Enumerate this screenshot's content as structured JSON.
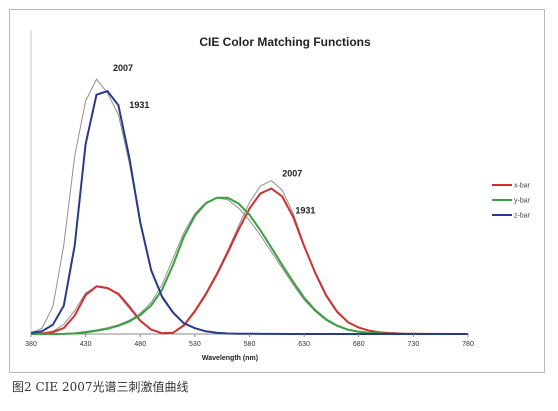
{
  "chart_data": {
    "type": "line",
    "title": "CIE Color Matching Functions",
    "xlabel": "Wavelength (nm)",
    "ylabel": "",
    "xlim": [
      380,
      780
    ],
    "ylim": [
      0,
      2.0
    ],
    "x_ticks": [
      380,
      430,
      480,
      530,
      580,
      630,
      680,
      730,
      780
    ],
    "grid": false,
    "legend_position": "right",
    "legend": [
      {
        "label": "x-bar",
        "color": "#d03030"
      },
      {
        "label": "y-bar",
        "color": "#3aa040"
      },
      {
        "label": "z-bar",
        "color": "#283a8c"
      }
    ],
    "annotations": [
      {
        "text": "2007",
        "x": 455,
        "y": 1.92
      },
      {
        "text": "1931",
        "x": 470,
        "y": 1.65
      },
      {
        "text": "2007",
        "x": 610,
        "y": 1.15
      },
      {
        "text": "1931",
        "x": 622,
        "y": 0.88
      }
    ],
    "series": [
      {
        "name": "x-bar",
        "set": "1931",
        "color": "#d03030",
        "x": [
          380,
          390,
          400,
          410,
          420,
          430,
          440,
          450,
          460,
          470,
          480,
          490,
          500,
          510,
          520,
          530,
          540,
          550,
          560,
          570,
          580,
          590,
          600,
          610,
          620,
          630,
          640,
          650,
          660,
          670,
          680,
          690,
          700,
          720,
          740,
          780
        ],
        "y": [
          0.001,
          0.004,
          0.014,
          0.044,
          0.134,
          0.284,
          0.348,
          0.336,
          0.291,
          0.195,
          0.096,
          0.032,
          0.005,
          0.009,
          0.063,
          0.166,
          0.29,
          0.433,
          0.595,
          0.762,
          0.916,
          1.026,
          1.062,
          1.003,
          0.854,
          0.642,
          0.448,
          0.284,
          0.165,
          0.087,
          0.047,
          0.023,
          0.011,
          0.003,
          0.001,
          0
        ]
      },
      {
        "name": "y-bar",
        "set": "1931",
        "color": "#3aa040",
        "x": [
          380,
          390,
          400,
          410,
          420,
          430,
          440,
          450,
          460,
          470,
          480,
          490,
          500,
          510,
          520,
          530,
          540,
          550,
          560,
          570,
          580,
          590,
          600,
          610,
          620,
          630,
          640,
          650,
          660,
          670,
          680,
          690,
          700,
          720,
          740,
          780
        ],
        "y": [
          0,
          0,
          0,
          0.001,
          0.004,
          0.012,
          0.023,
          0.038,
          0.06,
          0.091,
          0.139,
          0.208,
          0.323,
          0.503,
          0.71,
          0.862,
          0.954,
          0.995,
          0.995,
          0.952,
          0.87,
          0.757,
          0.631,
          0.503,
          0.381,
          0.265,
          0.175,
          0.107,
          0.061,
          0.032,
          0.017,
          0.008,
          0.004,
          0.001,
          0,
          0
        ]
      },
      {
        "name": "z-bar",
        "set": "1931",
        "color": "#283a8c",
        "x": [
          380,
          390,
          400,
          410,
          420,
          430,
          440,
          450,
          460,
          470,
          480,
          490,
          500,
          510,
          520,
          530,
          540,
          550,
          560,
          570,
          580,
          590,
          600,
          620,
          640,
          780
        ],
        "y": [
          0.007,
          0.02,
          0.068,
          0.207,
          0.646,
          1.386,
          1.747,
          1.772,
          1.669,
          1.288,
          0.813,
          0.465,
          0.272,
          0.158,
          0.078,
          0.042,
          0.02,
          0.009,
          0.004,
          0.002,
          0.002,
          0.001,
          0.001,
          0,
          0,
          0
        ]
      },
      {
        "name": "x-bar",
        "set": "2007",
        "color": "#909090",
        "x": [
          380,
          390,
          400,
          410,
          420,
          430,
          440,
          450,
          460,
          470,
          480,
          490,
          500,
          510,
          520,
          530,
          540,
          550,
          560,
          570,
          580,
          590,
          600,
          610,
          620,
          630,
          640,
          650,
          660,
          670,
          680,
          690,
          700,
          720,
          740,
          780
        ],
        "y": [
          0.001,
          0.005,
          0.02,
          0.07,
          0.17,
          0.3,
          0.345,
          0.33,
          0.3,
          0.21,
          0.1,
          0.035,
          0.008,
          0.012,
          0.07,
          0.175,
          0.3,
          0.445,
          0.61,
          0.79,
          0.96,
          1.08,
          1.12,
          1.05,
          0.88,
          0.65,
          0.44,
          0.275,
          0.158,
          0.083,
          0.044,
          0.022,
          0.01,
          0.003,
          0.001,
          0
        ]
      },
      {
        "name": "y-bar",
        "set": "2007",
        "color": "#909090",
        "x": [
          380,
          390,
          400,
          410,
          420,
          430,
          440,
          450,
          460,
          470,
          480,
          490,
          500,
          510,
          520,
          530,
          540,
          550,
          560,
          570,
          580,
          590,
          600,
          610,
          620,
          630,
          640,
          650,
          660,
          670,
          680,
          690,
          700,
          720,
          740,
          780
        ],
        "y": [
          0,
          0,
          0.001,
          0.003,
          0.008,
          0.018,
          0.03,
          0.045,
          0.068,
          0.1,
          0.15,
          0.23,
          0.36,
          0.55,
          0.74,
          0.88,
          0.96,
          0.995,
          0.98,
          0.92,
          0.83,
          0.72,
          0.6,
          0.48,
          0.36,
          0.25,
          0.165,
          0.1,
          0.057,
          0.03,
          0.016,
          0.008,
          0.004,
          0.001,
          0,
          0
        ]
      },
      {
        "name": "z-bar",
        "set": "2007",
        "color": "#909090",
        "x": [
          380,
          390,
          400,
          410,
          420,
          430,
          440,
          450,
          460,
          470,
          480,
          490,
          500,
          510,
          520,
          530,
          540,
          550,
          560,
          570,
          580,
          590,
          600,
          620,
          640,
          780
        ],
        "y": [
          0.01,
          0.04,
          0.2,
          0.65,
          1.3,
          1.7,
          1.86,
          1.76,
          1.6,
          1.25,
          0.8,
          0.46,
          0.26,
          0.15,
          0.075,
          0.04,
          0.02,
          0.009,
          0.004,
          0.002,
          0.001,
          0.001,
          0,
          0,
          0,
          0
        ]
      }
    ]
  },
  "caption": "图2  CIE 2007光谱三刺激值曲线"
}
